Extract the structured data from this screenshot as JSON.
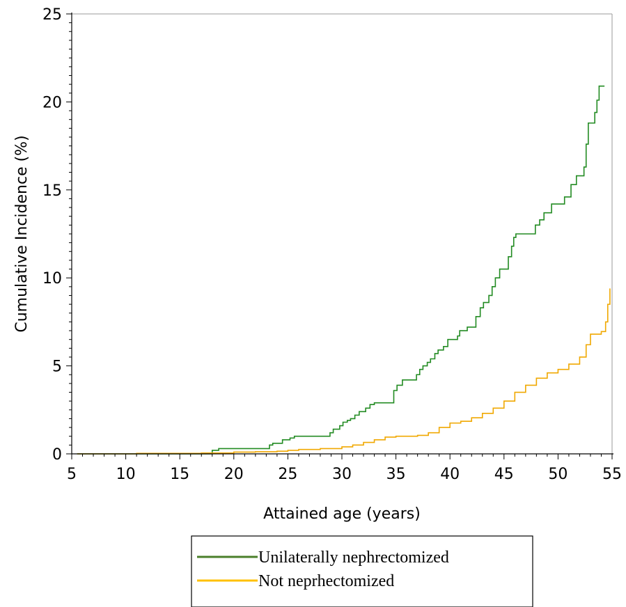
{
  "chart_data": {
    "type": "line",
    "title": "",
    "xlabel": "Attained age (years)",
    "ylabel": "Cumulative Incidence (%)",
    "xlim": [
      5,
      55
    ],
    "ylim": [
      0,
      25
    ],
    "xticks": [
      5,
      10,
      15,
      20,
      25,
      30,
      35,
      40,
      45,
      50,
      55
    ],
    "yticks": [
      0,
      5,
      10,
      15,
      20,
      25
    ],
    "grid": false,
    "legend_position": "bottom",
    "series": [
      {
        "name": "Unilaterally nephrectomized",
        "color": "#228b22",
        "legend_color": "#4a7f2a",
        "step": true,
        "x": [
          5.5,
          18,
          18.6,
          23.3,
          23.6,
          24.5,
          25.2,
          25.6,
          26,
          28.9,
          29.2,
          29.8,
          30.1,
          30.5,
          30.8,
          31.2,
          31.6,
          32.2,
          32.6,
          33,
          33.4,
          34.8,
          35.1,
          35.6,
          36.9,
          37.2,
          37.5,
          37.9,
          38.2,
          38.6,
          38.9,
          39.4,
          39.8,
          40.7,
          40.9,
          41.6,
          42.4,
          42.8,
          43.1,
          43.6,
          43.9,
          44.2,
          44.6,
          45.4,
          45.7,
          45.9,
          46.1,
          46.3,
          46.6,
          47.9,
          48.3,
          48.7,
          49.4,
          50.2,
          50.6,
          51.2,
          51.7,
          52.4,
          52.6,
          52.8,
          53.2,
          53.4,
          53.6,
          53.8,
          54.3
        ],
        "y": [
          0,
          0.2,
          0.3,
          0.5,
          0.6,
          0.8,
          0.9,
          1.0,
          1.0,
          1.2,
          1.4,
          1.6,
          1.8,
          1.9,
          2.0,
          2.2,
          2.4,
          2.6,
          2.8,
          2.9,
          2.9,
          3.6,
          3.9,
          4.2,
          4.5,
          4.8,
          5.0,
          5.2,
          5.4,
          5.7,
          5.9,
          6.1,
          6.5,
          6.7,
          7.0,
          7.2,
          7.8,
          8.3,
          8.6,
          9.0,
          9.5,
          10.0,
          10.5,
          11.2,
          11.8,
          12.3,
          12.5,
          12.5,
          12.5,
          13.0,
          13.3,
          13.7,
          14.2,
          14.2,
          14.6,
          15.3,
          15.8,
          16.3,
          17.6,
          18.8,
          18.8,
          19.4,
          20.1,
          20.9,
          20.9
        ]
      },
      {
        "name": "Not neprhectomized",
        "color": "#f0a800",
        "legend_color": "#ffc000",
        "step": true,
        "x": [
          5.5,
          11,
          17,
          20,
          22,
          24,
          25,
          26,
          28,
          30,
          31,
          32,
          33,
          34,
          35,
          36,
          37,
          38,
          39,
          40,
          41,
          42,
          43,
          44,
          45,
          46,
          47,
          48,
          49,
          50,
          51,
          52,
          52.6,
          53,
          54,
          54.4,
          54.6,
          54.8
        ],
        "y": [
          0,
          0.03,
          0.05,
          0.1,
          0.12,
          0.15,
          0.2,
          0.25,
          0.3,
          0.4,
          0.5,
          0.65,
          0.8,
          0.95,
          1.0,
          1.0,
          1.05,
          1.2,
          1.5,
          1.75,
          1.85,
          2.05,
          2.3,
          2.6,
          3.0,
          3.5,
          3.9,
          4.3,
          4.6,
          4.8,
          5.1,
          5.5,
          6.2,
          6.8,
          6.95,
          7.5,
          8.5,
          9.4
        ]
      }
    ]
  }
}
